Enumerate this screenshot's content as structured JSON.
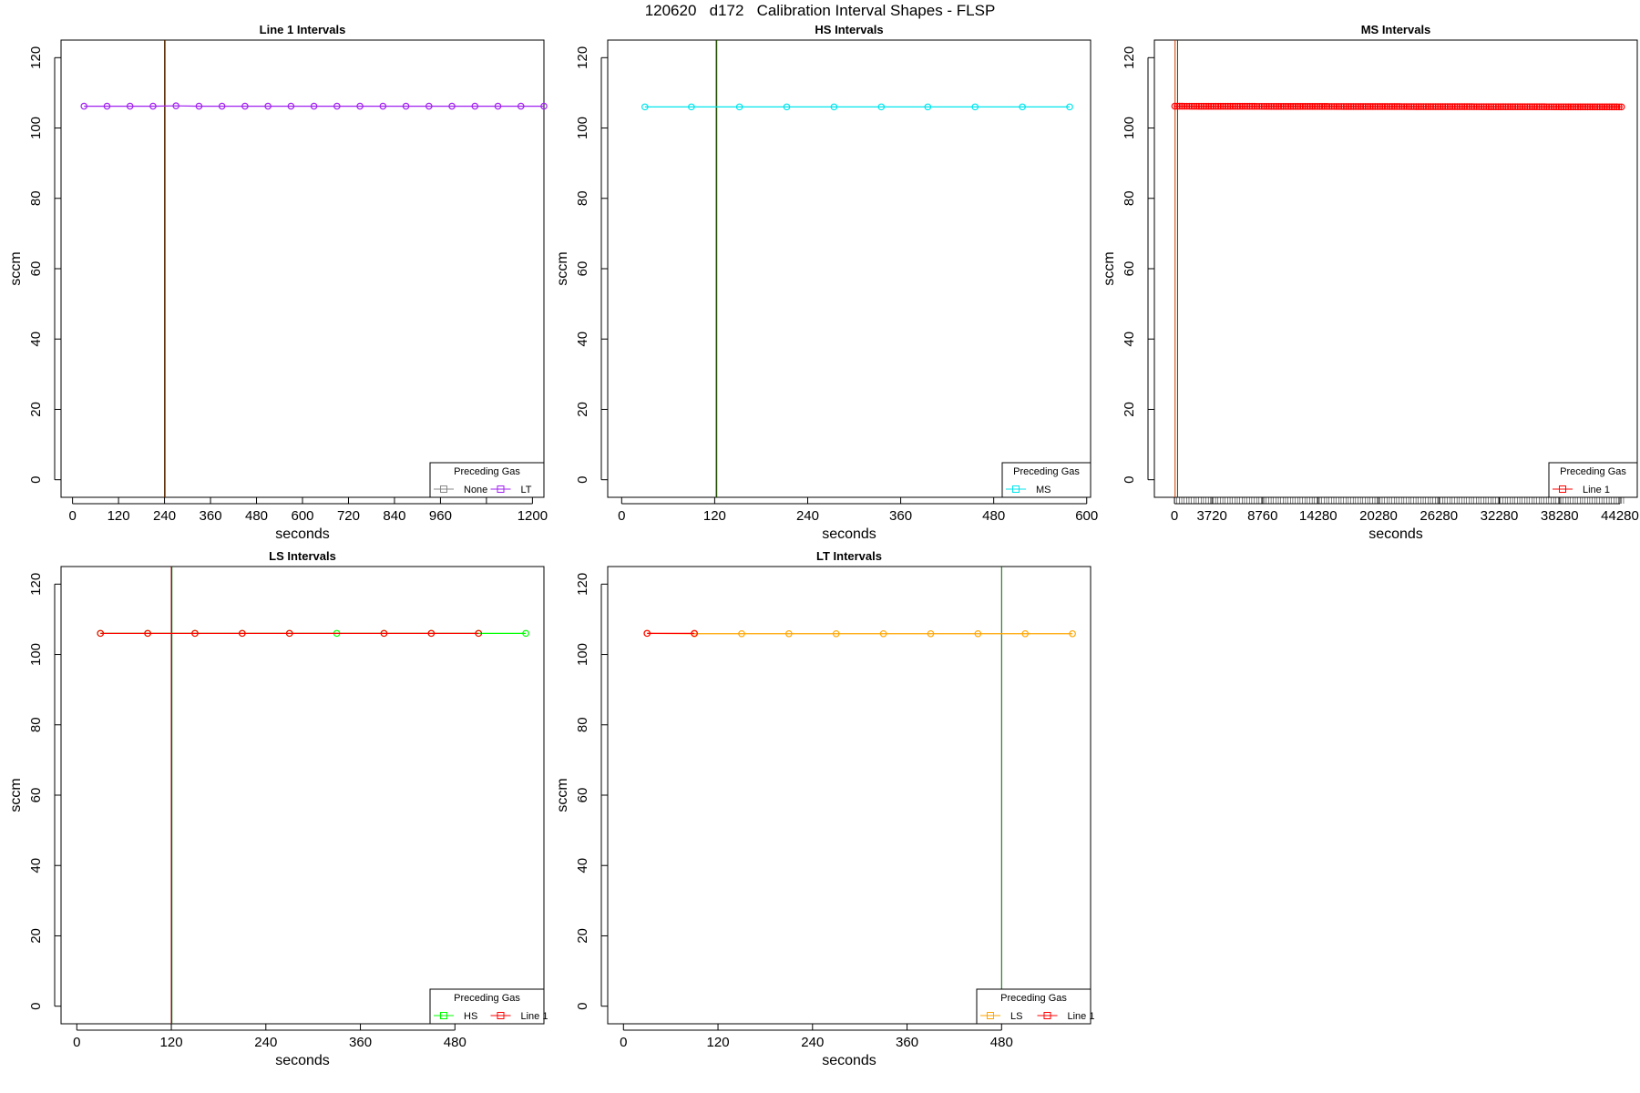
{
  "figure": {
    "title": "120620   d172   Calibration Interval Shapes - FLSP"
  },
  "chart_data": [
    {
      "type": "line",
      "title": "Line 1 Intervals",
      "xlabel": "seconds",
      "ylabel": "sccm",
      "xlim": [
        -30,
        1230
      ],
      "ylim": [
        -5,
        125
      ],
      "x_ticks": [
        0,
        120,
        240,
        360,
        480,
        600,
        720,
        840,
        960,
        1080,
        1200
      ],
      "x_tick_labels": [
        "0",
        "120",
        "240",
        "360",
        "480",
        "600",
        "720",
        "840",
        "960",
        "",
        "1200"
      ],
      "y_ticks": [
        0,
        20,
        40,
        60,
        80,
        100,
        120
      ],
      "vlines": [
        {
          "x": 240,
          "color": "#8b0000"
        },
        {
          "x": 240,
          "color": "#006400"
        }
      ],
      "legend": {
        "title": "Preceding Gas",
        "position": "bottom-right",
        "entries": [
          "None",
          "LT"
        ]
      },
      "series": [
        {
          "name": "None",
          "color": "#888888",
          "x": [],
          "y": []
        },
        {
          "name": "LT",
          "color": "#a020f0",
          "x": [
            30,
            90,
            150,
            210,
            270,
            330,
            390,
            450,
            510,
            570,
            630,
            690,
            750,
            810,
            870,
            930,
            990,
            1050,
            1110,
            1170,
            1230
          ],
          "y": [
            106.2,
            106.2,
            106.2,
            106.2,
            106.3,
            106.2,
            106.2,
            106.2,
            106.2,
            106.2,
            106.2,
            106.2,
            106.2,
            106.2,
            106.2,
            106.2,
            106.2,
            106.2,
            106.2,
            106.2,
            106.2
          ]
        }
      ]
    },
    {
      "type": "line",
      "title": "HS Intervals",
      "xlabel": "seconds",
      "ylabel": "sccm",
      "xlim": [
        -18,
        605
      ],
      "ylim": [
        -5,
        125
      ],
      "x_ticks": [
        0,
        120,
        240,
        360,
        480,
        600
      ],
      "x_tick_labels": [
        "0",
        "120",
        "240",
        "360",
        "480",
        "600"
      ],
      "y_ticks": [
        0,
        20,
        40,
        60,
        80,
        100,
        120
      ],
      "vlines": [
        {
          "x": 122,
          "color": "#8b0000"
        },
        {
          "x": 122,
          "color": "#006400"
        }
      ],
      "legend": {
        "title": "Preceding Gas",
        "position": "bottom-right",
        "entries": [
          "MS"
        ]
      },
      "series": [
        {
          "name": "MS",
          "color": "#00e5ee",
          "x": [
            30,
            90,
            152,
            213,
            274,
            335,
            395,
            456,
            517,
            578
          ],
          "y": [
            106,
            106,
            106,
            106,
            106,
            106,
            106,
            106,
            106,
            106
          ]
        }
      ]
    },
    {
      "type": "line",
      "title": "MS Intervals",
      "xlabel": "seconds",
      "ylabel": "sccm",
      "xlim": [
        -2000,
        46000
      ],
      "ylim": [
        -5,
        125
      ],
      "x_ticks": [
        0,
        3720,
        8760,
        14280,
        20280,
        26280,
        32280,
        38280,
        44280
      ],
      "x_tick_labels": [
        "0",
        "3720",
        "8760",
        "14280",
        "20280",
        "26280",
        "32280",
        "38280",
        "44280"
      ],
      "y_ticks": [
        0,
        20,
        40,
        60,
        80,
        100,
        120
      ],
      "vlines": [
        {
          "x": 60,
          "color": "#cd3700"
        },
        {
          "x": 250,
          "color": "#006400"
        }
      ],
      "legend": {
        "title": "Preceding Gas",
        "position": "bottom-right",
        "entries": [
          "Line 1"
        ]
      },
      "series": [
        {
          "name": "Line 1",
          "color": "#ff0000",
          "x_range": [
            30,
            44640
          ],
          "x_step": 240,
          "y_start": 106.2,
          "y_end": 106.0
        }
      ]
    },
    {
      "type": "line",
      "title": "LS Intervals",
      "xlabel": "seconds",
      "ylabel": "sccm",
      "xlim": [
        -20,
        593
      ],
      "ylim": [
        -5,
        125
      ],
      "x_ticks": [
        0,
        120,
        240,
        360,
        480
      ],
      "x_tick_labels": [
        "0",
        "120",
        "240",
        "360",
        "480"
      ],
      "y_ticks": [
        0,
        20,
        40,
        60,
        80,
        100,
        120
      ],
      "vlines": [
        {
          "x": 120,
          "color": "#8b0000"
        },
        {
          "x": 120,
          "color": "#006400"
        }
      ],
      "legend": {
        "title": "Preceding Gas",
        "position": "bottom-right",
        "entries": [
          "HS",
          "Line 1"
        ]
      },
      "series": [
        {
          "name": "HS",
          "color": "#00ff00",
          "x": [
            30,
            90,
            150,
            210,
            270,
            330,
            390,
            450,
            510,
            570
          ],
          "y": [
            106,
            106,
            106,
            106,
            106,
            106,
            106,
            106,
            106,
            106
          ]
        },
        {
          "name": "Line 1",
          "color": "#ff0000",
          "x": [
            30,
            90,
            150,
            210,
            270,
            390,
            450,
            510
          ],
          "y": [
            106,
            106,
            106,
            106,
            106,
            106,
            106,
            106
          ]
        }
      ]
    },
    {
      "type": "line",
      "title": "LT Intervals",
      "xlabel": "seconds",
      "ylabel": "sccm",
      "xlim": [
        -20,
        593
      ],
      "ylim": [
        -5,
        125
      ],
      "x_ticks": [
        0,
        120,
        240,
        360,
        480
      ],
      "x_tick_labels": [
        "0",
        "120",
        "240",
        "360",
        "480"
      ],
      "y_ticks": [
        0,
        20,
        40,
        60,
        80,
        100,
        120
      ],
      "vlines": [
        {
          "x": 480,
          "color": "#006400"
        }
      ],
      "legend": {
        "title": "Preceding Gas",
        "position": "bottom-right",
        "entries": [
          "LS",
          "Line 1"
        ]
      },
      "series": [
        {
          "name": "LS",
          "color": "#ffa500",
          "x": [
            30,
            90,
            150,
            210,
            270,
            330,
            390,
            450,
            510,
            570
          ],
          "y": [
            106,
            105.9,
            105.9,
            105.9,
            105.9,
            105.9,
            105.9,
            105.9,
            105.9,
            105.9
          ]
        },
        {
          "name": "Line 1",
          "color": "#ff0000",
          "x": [
            30,
            90
          ],
          "y": [
            106,
            106
          ]
        }
      ]
    }
  ]
}
